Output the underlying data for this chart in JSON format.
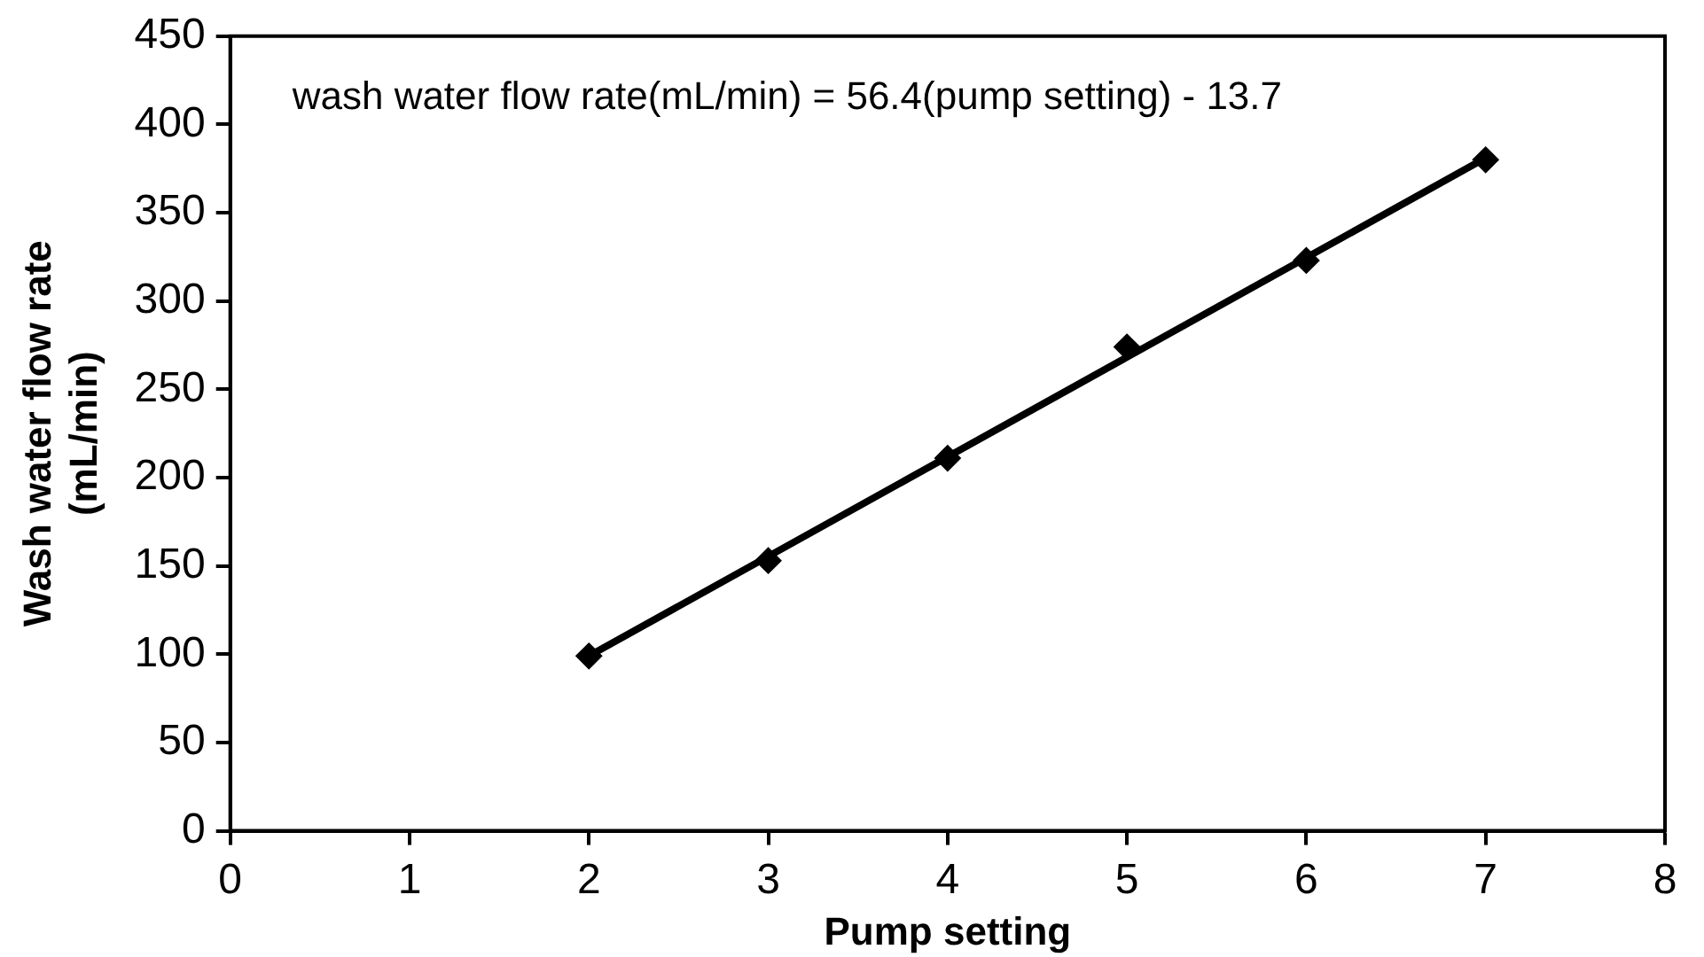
{
  "chart_data": {
    "type": "scatter",
    "xlabel": "Pump setting",
    "ylabel": "Wash water flow rate (mL/min)",
    "annotations": [
      "wash water flow rate(mL/min) = 56.4(pump setting) - 13.7"
    ],
    "series": [
      {
        "color": "#000000",
        "x": [
          2,
          3,
          4,
          5,
          6,
          7
        ],
        "values": [
          99,
          153,
          211,
          274,
          323,
          380
        ],
        "marker": "diamond"
      },
      {
        "type": "line",
        "color": "#000000",
        "x": [
          2,
          7
        ],
        "values": [
          99,
          381
        ],
        "marker": "none",
        "line_style": "solid"
      }
    ],
    "xlim": [
      0,
      8
    ],
    "xticks": [
      0,
      1,
      2,
      3,
      4,
      5,
      6,
      7,
      8
    ],
    "ylim": [
      0,
      450
    ],
    "yticks": [
      0,
      50,
      100,
      150,
      200,
      250,
      300,
      350,
      400,
      450
    ],
    "grid": false,
    "legend": false
  }
}
